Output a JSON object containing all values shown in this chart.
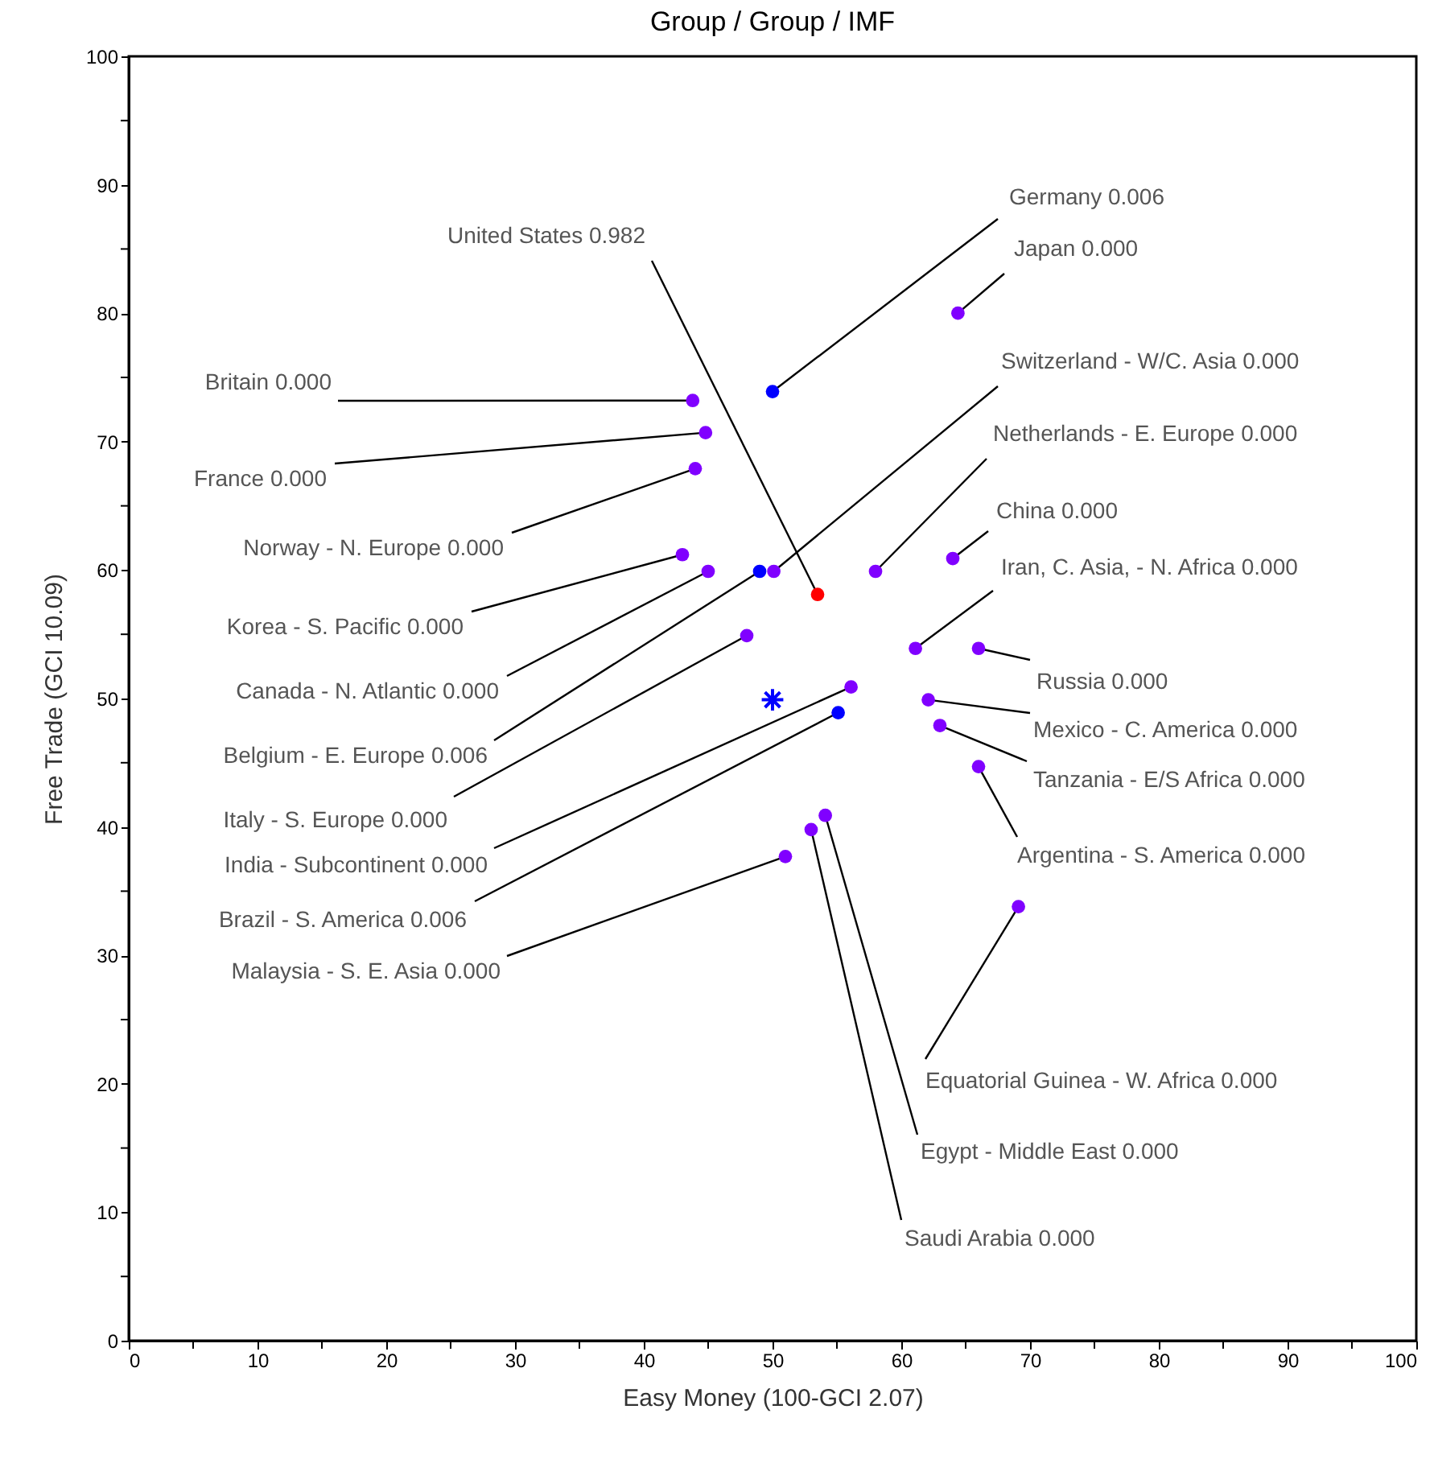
{
  "chart_data": {
    "type": "scatter",
    "title": "Group / Group / IMF",
    "xlabel": "Easy Money (100-GCI  2.07)",
    "ylabel": "Free Trade (GCI 10.09)",
    "xlim": [
      0,
      100
    ],
    "ylim": [
      0,
      100
    ],
    "xticks": [
      0,
      {
        "value": 5,
        "label": null
      },
      10,
      {
        "value": 15,
        "label": null
      },
      20,
      {
        "value": 25,
        "label": null
      },
      30,
      {
        "value": 35,
        "label": null
      },
      40,
      {
        "value": 45,
        "label": null
      },
      50,
      {
        "value": 55,
        "label": null
      },
      60,
      {
        "value": 65,
        "label": null
      },
      70,
      {
        "value": 75,
        "label": null
      },
      80,
      {
        "value": 85,
        "label": null
      },
      90,
      {
        "value": 95,
        "label": null
      },
      100
    ],
    "yticks": [
      0,
      {
        "value": 5,
        "label": null
      },
      10,
      {
        "value": 15,
        "label": null
      },
      20,
      {
        "value": 25,
        "label": null
      },
      30,
      {
        "value": 35,
        "label": null
      },
      40,
      {
        "value": 45,
        "label": null
      },
      50,
      {
        "value": 55,
        "label": null
      },
      60,
      {
        "value": 65,
        "label": null
      },
      70,
      {
        "value": 75,
        "label": null
      },
      80,
      {
        "value": 85,
        "label": null
      },
      90,
      {
        "value": 95,
        "label": null
      },
      100
    ],
    "grid": false,
    "series": [
      {
        "marker": "circle",
        "x": [
          50.0,
          64.4,
          53.5,
          43.8,
          44.8,
          44.0,
          43.0,
          45.0,
          49.0,
          50.1,
          58.0,
          64.0,
          48.0,
          61.1,
          66.0,
          56.1,
          55.1,
          62.1,
          63.0,
          66.0,
          54.1,
          53.0,
          51.0,
          69.1
        ],
        "values": [
          73.9,
          80.0,
          58.1,
          73.2,
          70.7,
          67.9,
          61.2,
          59.9,
          59.9,
          59.9,
          59.9,
          60.9,
          54.9,
          53.9,
          53.9,
          50.9,
          48.9,
          49.9,
          47.9,
          44.7,
          40.9,
          39.8,
          37.7,
          33.8
        ],
        "colors": [
          "#0000ff",
          "#8000ff",
          "#ff0000",
          "#8000ff",
          "#8000ff",
          "#8000ff",
          "#8000ff",
          "#8000ff",
          "#0000ff",
          "#8000ff",
          "#8000ff",
          "#8000ff",
          "#8000ff",
          "#8000ff",
          "#8000ff",
          "#8000ff",
          "#0000ff",
          "#8000ff",
          "#8000ff",
          "#8000ff",
          "#8000ff",
          "#8000ff",
          "#8000ff",
          "#8000ff"
        ],
        "value_labels": [
          "Germany 0.006",
          "Japan 0.000",
          "United States 0.982",
          "Britain 0.000",
          "France 0.000",
          "Norway - N. Europe 0.000",
          "Korea - S. Pacific 0.000",
          "Canada - N. Atlantic 0.000",
          "Belgium - E. Europe 0.006",
          "Switzerland - W/C. Asia 0.000",
          "Netherlands - E. Europe 0.000",
          "China 0.000",
          "Italy - S. Europe 0.000",
          "Iran, C. Asia, - N. Africa 0.000",
          "Russia 0.000",
          "India - Subcontinent 0.000",
          "Brazil - S. America 0.006",
          "Mexico - C. America 0.000",
          "Tanzania - E/S Africa 0.000",
          "Argentina - S. America 0.000",
          "Egypt - Middle East 0.000",
          "Saudi Arabia 0.000",
          "Malaysia - S. E. Asia 0.000",
          "Equatorial Guinea - W. Africa 0.000"
        ]
      },
      {
        "marker": "cross",
        "color": "#0000ff",
        "x": [
          50.0
        ],
        "values": [
          49.9
        ]
      }
    ]
  }
}
